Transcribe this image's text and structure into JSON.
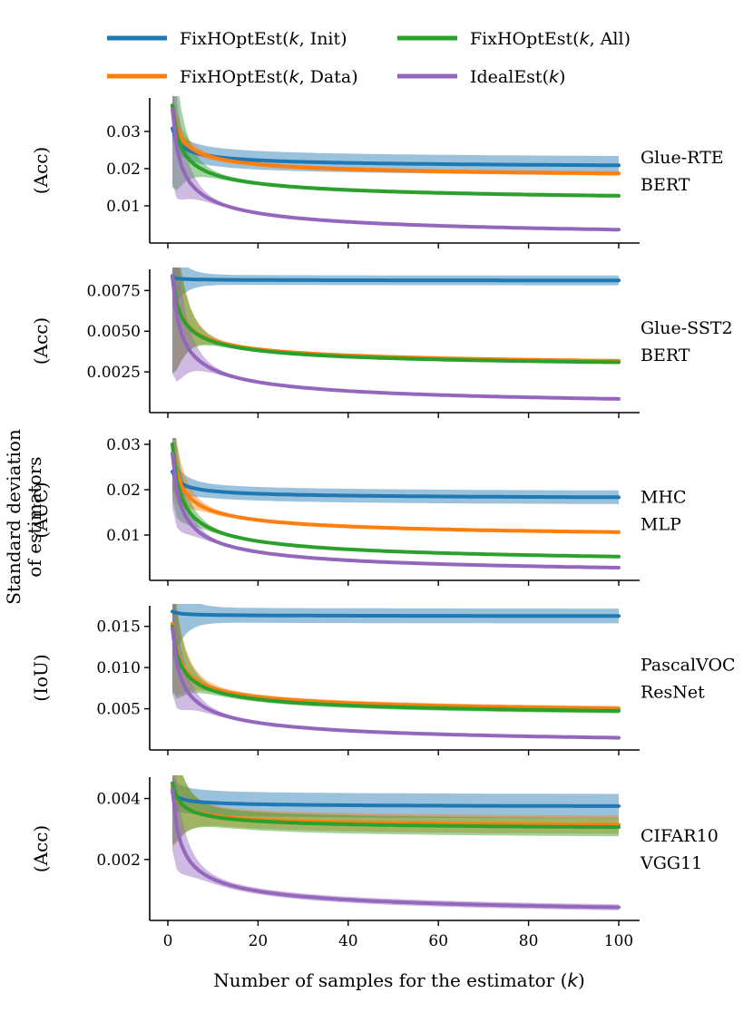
{
  "legend": {
    "init": "FixHOptEst(k, Init)",
    "data": "FixHOptEst(k, Data)",
    "all": "FixHOptEst(k, All)",
    "ideal": "IdealEst(k)"
  },
  "colors": {
    "init": "#1f77b4",
    "data": "#ff7f0e",
    "all": "#2ca02c",
    "ideal": "#9467bd"
  },
  "shared_ylabel": [
    "Standard deviation",
    "of estimators"
  ],
  "xlabel": "Number of samples for the estimator (k)",
  "chart_data": {
    "type": "line",
    "x_range": [
      1,
      100
    ],
    "x_ticks": [
      0,
      20,
      40,
      60,
      80,
      100
    ],
    "series_keys": [
      "init",
      "data",
      "all",
      "ideal"
    ],
    "panels": [
      {
        "task": "Glue-RTE",
        "model": "BERT",
        "metric": "(Acc)",
        "ylim": [
          0.0,
          0.039
        ],
        "yticks": [
          0.01,
          0.02,
          0.03
        ],
        "ytick_labels": [
          "0.01",
          "0.02",
          "0.03"
        ],
        "series": {
          "init": {
            "start": 0.031,
            "asymp": 0.0198,
            "c": 0.011,
            "bw0": 0.003,
            "bw1": 0.0025
          },
          "data": {
            "start": 0.037,
            "asymp": 0.0167,
            "c": 0.02,
            "bw0": 0.006,
            "bw1": 0.0006
          },
          "all": {
            "start": 0.037,
            "asymp": 0.01,
            "c": 0.027,
            "bw0": 0.022,
            "bw1": 0.0005
          },
          "ideal": {
            "start": 0.036,
            "asymp": 0.0,
            "c": 0.036,
            "bw0": 0.02,
            "bw1": 0.0003
          }
        }
      },
      {
        "task": "Glue-SST2",
        "model": "BERT",
        "metric": "(Acc)",
        "ylim": [
          0.0,
          0.0088
        ],
        "yticks": [
          0.0025,
          0.005,
          0.0075
        ],
        "ytick_labels": [
          "0.0025",
          "0.0050",
          "0.0075"
        ],
        "series": {
          "init": {
            "start": 0.0083,
            "asymp": 0.0081,
            "c": 0.0002,
            "bw0": 0.002,
            "bw1": 0.0003
          },
          "data": {
            "start": 0.0084,
            "asymp": 0.0026,
            "c": 0.0058,
            "bw0": 0.006,
            "bw1": 0.0001
          },
          "all": {
            "start": 0.0084,
            "asymp": 0.0025,
            "c": 0.0059,
            "bw0": 0.006,
            "bw1": 0.0001
          },
          "ideal": {
            "start": 0.0084,
            "asymp": 0.0,
            "c": 0.0084,
            "bw0": 0.006,
            "bw1": 8e-05
          }
        }
      },
      {
        "task": "MHC",
        "model": "MLP",
        "metric": "(AUC)",
        "ylim": [
          0.0,
          0.031
        ],
        "yticks": [
          0.01,
          0.02,
          0.03
        ],
        "ytick_labels": [
          "0.01",
          "0.02",
          "0.03"
        ],
        "series": {
          "init": {
            "start": 0.024,
            "asymp": 0.0177,
            "c": 0.0063,
            "bw0": 0.004,
            "bw1": 0.0015
          },
          "data": {
            "start": 0.03,
            "asymp": 0.0085,
            "c": 0.0215,
            "bw0": 0.01,
            "bw1": 0.0004
          },
          "all": {
            "start": 0.03,
            "asymp": 0.0025,
            "c": 0.0275,
            "bw0": 0.012,
            "bw1": 0.0003
          },
          "ideal": {
            "start": 0.028,
            "asymp": 0.0,
            "c": 0.028,
            "bw0": 0.012,
            "bw1": 0.0002
          }
        }
      },
      {
        "task": "PascalVOC",
        "model": "ResNet",
        "metric": "(IoU)",
        "ylim": [
          0.0,
          0.0175
        ],
        "yticks": [
          0.005,
          0.01,
          0.015
        ],
        "ytick_labels": [
          "0.005",
          "0.010",
          "0.015"
        ],
        "series": {
          "init": {
            "start": 0.0168,
            "asymp": 0.0162,
            "c": 0.0006,
            "bw0": 0.006,
            "bw1": 0.0009
          },
          "data": {
            "start": 0.0153,
            "asymp": 0.0039,
            "c": 0.0114,
            "bw0": 0.008,
            "bw1": 0.0003
          },
          "all": {
            "start": 0.015,
            "asymp": 0.0036,
            "c": 0.0114,
            "bw0": 0.008,
            "bw1": 0.0003
          },
          "ideal": {
            "start": 0.0148,
            "asymp": 0.0,
            "c": 0.0148,
            "bw0": 0.008,
            "bw1": 0.0002
          }
        }
      },
      {
        "task": "CIFAR10",
        "model": "VGG11",
        "metric": "(Acc)",
        "ylim": [
          0.0,
          0.0047
        ],
        "yticks": [
          0.002,
          0.004
        ],
        "ytick_labels": [
          "0.002",
          "0.004"
        ],
        "series": {
          "init": {
            "start": 0.0042,
            "asymp": 0.0037,
            "c": 0.0005,
            "bw0": 0.0005,
            "bw1": 0.0004
          },
          "data": {
            "start": 0.0044,
            "asymp": 0.003,
            "c": 0.0014,
            "bw0": 0.002,
            "bw1": 0.0003
          },
          "all": {
            "start": 0.0045,
            "asymp": 0.0029,
            "c": 0.0016,
            "bw0": 0.002,
            "bw1": 0.0003
          },
          "ideal": {
            "start": 0.0043,
            "asymp": 0.0,
            "c": 0.0043,
            "bw0": 0.002,
            "bw1": 0.0001
          }
        }
      }
    ]
  }
}
